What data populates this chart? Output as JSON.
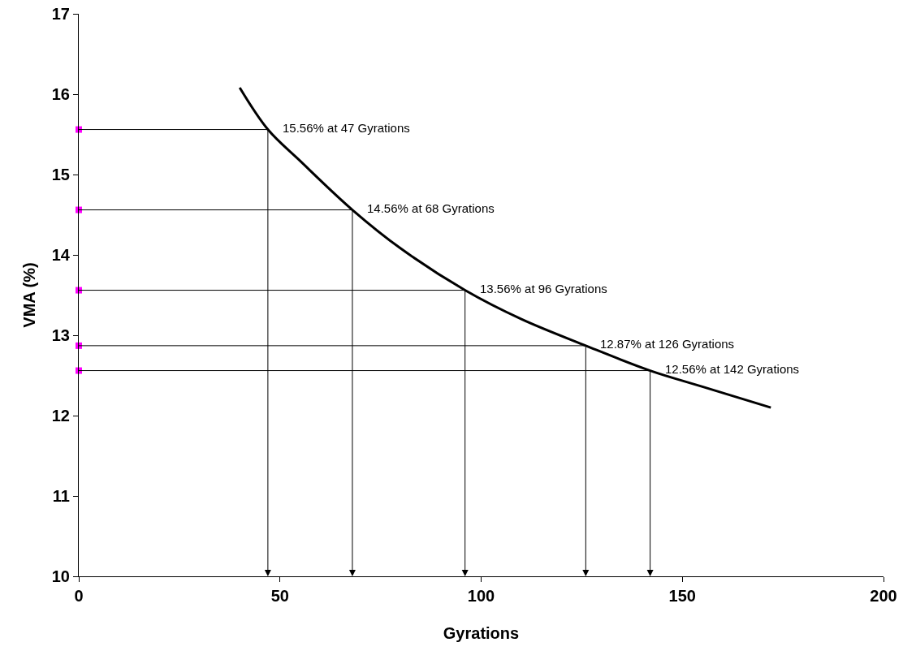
{
  "chart_data": {
    "type": "line",
    "xlabel": "Gyrations",
    "ylabel": "VMA (%)",
    "xlim": [
      0,
      200
    ],
    "xticks": [
      0,
      50,
      100,
      150,
      200
    ],
    "ylim": [
      10,
      17
    ],
    "yticks": [
      10,
      11,
      12,
      13,
      14,
      15,
      16,
      17
    ],
    "grid": false,
    "series": [
      {
        "color": "#000000",
        "x": [
          40,
          47,
          55,
          68,
          80,
          96,
          110,
          126,
          142,
          155,
          172
        ],
        "values": [
          16.08,
          15.56,
          15.17,
          14.56,
          14.08,
          13.56,
          13.2,
          12.87,
          12.56,
          12.36,
          12.1
        ]
      },
      {
        "type": "scatter",
        "color": "#ff00ff",
        "marker": "square",
        "x": [
          0,
          0,
          0,
          0,
          0
        ],
        "values": [
          15.56,
          14.56,
          13.56,
          12.87,
          12.56
        ]
      }
    ],
    "annotations": [
      {
        "text": "15.56% at 47 Gyrations",
        "x": 47,
        "y": 15.56
      },
      {
        "text": "14.56% at 68 Gyrations",
        "x": 68,
        "y": 14.56
      },
      {
        "text": "13.56% at 96 Gyrations",
        "x": 96,
        "y": 13.56
      },
      {
        "text": "12.87% at 126 Gyrations",
        "x": 126,
        "y": 12.87
      },
      {
        "text": "12.56% at 142 Gyrations",
        "x": 142,
        "y": 12.56
      }
    ]
  }
}
